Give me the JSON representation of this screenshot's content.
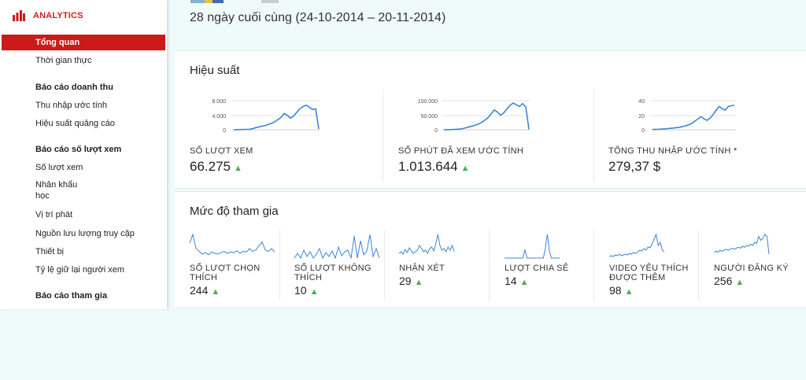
{
  "sidebar": {
    "brand_label": "ANALYTICS",
    "items": [
      {
        "label": "Tổng quan",
        "active": true
      },
      {
        "label": "Thời gian thực"
      },
      {
        "label": "Báo cáo doanh thu",
        "heading": true
      },
      {
        "label": "Thu nhập ước tính"
      },
      {
        "label": "Hiệu suất quảng cáo"
      },
      {
        "label": "Báo cáo số lượt xem",
        "heading": true
      },
      {
        "label": "Số lượt xem"
      },
      {
        "label": "Nhân khẩu học"
      },
      {
        "label": "Vị trí phát"
      },
      {
        "label": "Nguồn lưu lượng truy cập"
      },
      {
        "label": "Thiết bị"
      },
      {
        "label": "Tỷ lệ giữ lại người xem"
      },
      {
        "label": "Báo cáo tham gia",
        "heading": true
      }
    ]
  },
  "header": {
    "date_range": "28 ngày cuối cùng (24-10-2014 – 20-11-2014)"
  },
  "colors": {
    "accent": "#cc1a1a",
    "line": "#3a86d6",
    "up_arrow": "#4caf50",
    "background": "#effbfb"
  },
  "performance": {
    "title": "Hiệu suất",
    "metrics": [
      {
        "label": "SỐ LƯỢT XEM",
        "value": "66.275",
        "trend": "up",
        "ticks": [
          "8.000",
          "4.000",
          "0"
        ],
        "ylim": [
          0,
          8000
        ],
        "values": [
          20,
          40,
          60,
          80,
          100,
          150,
          300,
          600,
          800,
          1000,
          1200,
          1500,
          1800,
          2200,
          2800,
          3400,
          4500,
          4000,
          3200,
          3800,
          4800,
          5800,
          6400,
          6800,
          6200,
          5600,
          5800,
          200
        ]
      },
      {
        "label": "SỐ PHÚT ĐÃ XEM ƯỚC TÍNH",
        "value": "1.013.644",
        "trend": "up",
        "ticks": [
          "100.000",
          "50.000",
          "0"
        ],
        "ylim": [
          0,
          100000
        ],
        "values": [
          300,
          500,
          800,
          1200,
          1800,
          2500,
          4000,
          7000,
          10000,
          13000,
          16000,
          20000,
          26000,
          33000,
          42000,
          55000,
          68000,
          61000,
          50000,
          58000,
          72000,
          84000,
          92000,
          86000,
          80000,
          90000,
          78000,
          1500
        ]
      },
      {
        "label": "TỔNG THU NHẬP ƯỚC TÍNH *",
        "value": "279,37 $",
        "trend": "none",
        "ticks": [
          "40",
          "20",
          "0"
        ],
        "ylim": [
          0,
          40
        ],
        "values": [
          0.4,
          0.6,
          0.8,
          1,
          1.3,
          1.6,
          2,
          2.5,
          3,
          3.6,
          4.4,
          5.5,
          7,
          9,
          12,
          15,
          18,
          15,
          13,
          16,
          21,
          27,
          32,
          29,
          27,
          32,
          33,
          34
        ]
      }
    ]
  },
  "engagement": {
    "title": "Mức độ tham gia",
    "metrics": [
      {
        "label": "SỐ LƯỢT CHỌN THÍCH",
        "value": "244",
        "trend": "up",
        "values": [
          22,
          35,
          14,
          10,
          6,
          8,
          5,
          9,
          7,
          6,
          8,
          10,
          7,
          9,
          8,
          11,
          7,
          10,
          9,
          14,
          10,
          12,
          18,
          24,
          12,
          10,
          14,
          9
        ]
      },
      {
        "label": "SỐ LƯỢT KHÔNG THÍCH",
        "value": "10",
        "trend": "up",
        "values": [
          0,
          6,
          0,
          10,
          2,
          8,
          0,
          5,
          12,
          0,
          7,
          2,
          9,
          0,
          14,
          3,
          8,
          10,
          0,
          28,
          0,
          22,
          4,
          9,
          30,
          2,
          12,
          0
        ]
      },
      {
        "label": "NHẬN XÉT",
        "value": "29",
        "trend": "up",
        "values": [
          6,
          8,
          5,
          11,
          7,
          13,
          9,
          6,
          8,
          10,
          16,
          12,
          8,
          10,
          6,
          12,
          14,
          9,
          18,
          30,
          16,
          10,
          12,
          8,
          14,
          10,
          16,
          8
        ]
      },
      {
        "label": "LƯỢT CHIA SẺ",
        "value": "14",
        "trend": "up",
        "values": [
          0,
          0,
          0,
          0,
          0,
          0,
          0,
          0,
          0,
          0,
          10,
          0,
          0,
          0,
          0,
          0,
          0,
          0,
          0,
          0,
          12,
          28,
          8,
          0,
          0,
          0,
          0,
          0
        ]
      },
      {
        "label": "VIDEO YÊU THÍCH ĐƯỢC THÊM",
        "value": "98",
        "trend": "up",
        "values": [
          2,
          3,
          2,
          4,
          3,
          5,
          3,
          4,
          5,
          4,
          6,
          5,
          7,
          6,
          8,
          10,
          9,
          12,
          10,
          14,
          13,
          18,
          24,
          30,
          16,
          20,
          10,
          8
        ]
      },
      {
        "label": "NGƯỜI ĐĂNG KÝ",
        "value": "256",
        "trend": "up",
        "values": [
          6,
          7,
          6,
          8,
          7,
          8,
          9,
          8,
          9,
          10,
          9,
          10,
          11,
          10,
          12,
          11,
          13,
          12,
          14,
          13,
          16,
          15,
          22,
          18,
          20,
          24,
          22,
          4
        ]
      }
    ]
  }
}
